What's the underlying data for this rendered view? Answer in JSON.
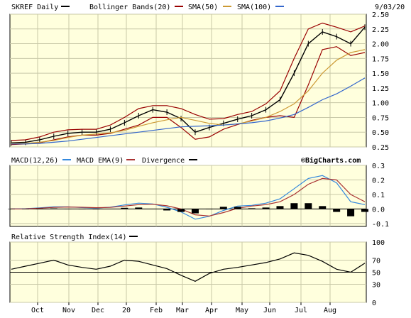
{
  "header": {
    "symbol_label": "SKREF Daily",
    "bb_label": "Bollinger Bands(20)",
    "sma50_label": "SMA(50)",
    "sma100_label": "SMA(100)",
    "date": "9/03/20"
  },
  "macd_header": {
    "macd_label": "MACD(12,26)",
    "ema_label": "MACD EMA(9)",
    "div_label": "Divergence",
    "watermark": "©BigCharts.com"
  },
  "rsi_header": {
    "rsi_label": "Relative Strength Index(14)"
  },
  "colors": {
    "panel_bg": "#ffffdd",
    "grid": "#c8c8a8",
    "price": "#000000",
    "bollinger": "#990000",
    "sma50": "#cc9933",
    "sma100": "#3366cc",
    "macd": "#3388dd",
    "macd_ema": "#aa3333",
    "divergence": "#000000"
  },
  "chart_data": [
    {
      "type": "line",
      "panel": "price",
      "x": [
        "Sep 14",
        "Sep 28",
        "Oct 12",
        "Oct 26",
        "Nov 9",
        "Nov 23",
        "Dec 7",
        "Dec 21",
        "Jan 4",
        "Jan 18",
        "Feb 1",
        "Feb 15",
        "Mar 1",
        "Mar 15",
        "Mar 29",
        "Apr 12",
        "Apr 26",
        "May 10",
        "May 24",
        "Jun 7",
        "Jun 21",
        "Jul 5",
        "Jul 19",
        "Aug 2",
        "Aug 16",
        "Aug 30"
      ],
      "series": [
        {
          "name": "SKREF",
          "values": [
            0.32,
            0.33,
            0.37,
            0.43,
            0.48,
            0.5,
            0.5,
            0.55,
            0.66,
            0.78,
            0.88,
            0.84,
            0.73,
            0.5,
            0.58,
            0.65,
            0.72,
            0.78,
            0.88,
            1.05,
            1.5,
            2.0,
            2.2,
            2.12,
            2.0,
            2.28
          ]
        },
        {
          "name": "Bollinger Bands(20)",
          "role": "upper",
          "values": [
            0.36,
            0.37,
            0.42,
            0.5,
            0.54,
            0.55,
            0.55,
            0.62,
            0.75,
            0.9,
            0.95,
            0.95,
            0.9,
            0.8,
            0.72,
            0.73,
            0.8,
            0.85,
            0.98,
            1.2,
            1.75,
            2.25,
            2.35,
            2.28,
            2.2,
            2.3
          ]
        },
        {
          "name": "Bollinger Bands(20)",
          "role": "lower",
          "values": [
            0.29,
            0.3,
            0.32,
            0.37,
            0.42,
            0.45,
            0.45,
            0.48,
            0.55,
            0.62,
            0.75,
            0.75,
            0.58,
            0.38,
            0.42,
            0.55,
            0.63,
            0.7,
            0.75,
            0.78,
            0.75,
            1.3,
            1.9,
            1.95,
            1.8,
            1.85
          ]
        },
        {
          "name": "SMA(50)",
          "values": [
            0.31,
            0.31,
            0.33,
            0.36,
            0.41,
            0.45,
            0.47,
            0.49,
            0.53,
            0.6,
            0.66,
            0.71,
            0.75,
            0.7,
            0.65,
            0.62,
            0.64,
            0.69,
            0.75,
            0.85,
            0.98,
            1.2,
            1.5,
            1.72,
            1.85,
            1.9
          ]
        },
        {
          "name": "SMA(100)",
          "values": [
            0.3,
            0.3,
            0.31,
            0.33,
            0.35,
            0.38,
            0.41,
            0.44,
            0.47,
            0.5,
            0.53,
            0.56,
            0.59,
            0.6,
            0.61,
            0.62,
            0.64,
            0.66,
            0.69,
            0.74,
            0.8,
            0.92,
            1.05,
            1.15,
            1.28,
            1.42
          ]
        }
      ],
      "y_ticks": [
        "0.25",
        "0.50",
        "0.75",
        "1.00",
        "1.25",
        "1.50",
        "1.75",
        "2.00",
        "2.25",
        "2.50"
      ],
      "ylim": [
        0.25,
        2.5
      ],
      "grid": true
    },
    {
      "type": "line",
      "panel": "macd",
      "x": [
        "Sep 14",
        "Sep 28",
        "Oct 12",
        "Oct 26",
        "Nov 9",
        "Nov 23",
        "Dec 7",
        "Dec 21",
        "Jan 4",
        "Jan 18",
        "Feb 1",
        "Feb 15",
        "Mar 1",
        "Mar 15",
        "Mar 29",
        "Apr 12",
        "Apr 26",
        "May 10",
        "May 24",
        "Jun 7",
        "Jun 21",
        "Jul 5",
        "Jul 19",
        "Aug 2",
        "Aug 16",
        "Aug 30"
      ],
      "series": [
        {
          "name": "MACD(12,26)",
          "values": [
            0,
            0.002,
            0.008,
            0.015,
            0.015,
            0.01,
            0.006,
            0.013,
            0.028,
            0.04,
            0.035,
            0.012,
            -0.02,
            -0.07,
            -0.05,
            -0.01,
            0.02,
            0.025,
            0.04,
            0.07,
            0.14,
            0.21,
            0.23,
            0.18,
            0.05,
            0.03
          ]
        },
        {
          "name": "MACD EMA(9)",
          "values": [
            0,
            0.001,
            0.005,
            0.011,
            0.014,
            0.012,
            0.009,
            0.011,
            0.02,
            0.03,
            0.033,
            0.022,
            0.0,
            -0.04,
            -0.048,
            -0.025,
            0.005,
            0.02,
            0.03,
            0.05,
            0.1,
            0.17,
            0.21,
            0.2,
            0.1,
            0.05
          ]
        },
        {
          "name": "Divergence",
          "values": [
            0,
            0.001,
            0.003,
            0.004,
            0.001,
            -0.002,
            -0.003,
            0.002,
            0.008,
            0.01,
            0.002,
            -0.01,
            -0.02,
            -0.03,
            -0.002,
            0.015,
            0.015,
            0.005,
            0.01,
            0.02,
            0.04,
            0.04,
            0.02,
            -0.02,
            -0.05,
            -0.02
          ]
        }
      ],
      "y_ticks": [
        "0.3",
        "0.2",
        "0.1",
        "0.0",
        "-0.1"
      ],
      "ylim": [
        -0.12,
        0.3
      ],
      "grid": true
    },
    {
      "type": "line",
      "panel": "rsi",
      "x": [
        "Sep 14",
        "Sep 28",
        "Oct 12",
        "Oct 26",
        "Nov 9",
        "Nov 23",
        "Dec 7",
        "Dec 21",
        "Jan 4",
        "Jan 18",
        "Feb 1",
        "Feb 15",
        "Mar 1",
        "Mar 15",
        "Mar 29",
        "Apr 12",
        "Apr 26",
        "May 10",
        "May 24",
        "Jun 7",
        "Jun 21",
        "Jul 5",
        "Jul 19",
        "Aug 2",
        "Aug 16",
        "Aug 30"
      ],
      "series": [
        {
          "name": "Relative Strength Index(14)",
          "values": [
            55,
            60,
            65,
            70,
            62,
            58,
            55,
            60,
            70,
            68,
            62,
            56,
            45,
            35,
            48,
            55,
            58,
            62,
            66,
            72,
            82,
            78,
            68,
            55,
            50,
            65
          ]
        }
      ],
      "y_ticks": [
        "100",
        "70",
        "50",
        "30",
        "0"
      ],
      "ylim": [
        0,
        100
      ],
      "grid": true
    }
  ],
  "x_axis_labels": [
    "Oct",
    "Nov",
    "Dec",
    "20",
    "Feb",
    "Mar",
    "Apr",
    "May",
    "Jun",
    "Jul",
    "Aug"
  ]
}
